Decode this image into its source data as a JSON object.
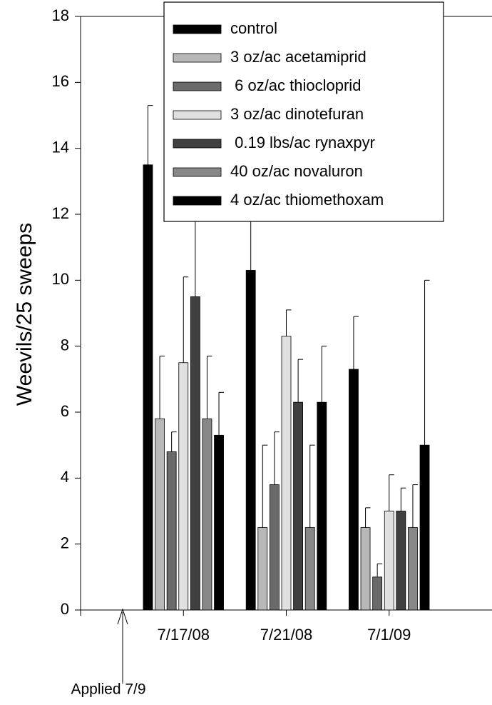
{
  "chart_data": {
    "type": "bar",
    "y_label": "Weevils/25 sweeps",
    "annotation": "Applied 7/9",
    "categories": [
      "7/17/08",
      "7/21/08",
      "7/1/09"
    ],
    "ylim": [
      0,
      18
    ],
    "yticks": [
      0,
      2,
      4,
      6,
      8,
      10,
      12,
      14,
      16,
      18
    ],
    "series": [
      {
        "name": "control",
        "color": "#000000",
        "values": [
          13.5,
          10.3,
          7.3
        ],
        "errors": [
          1.8,
          2.2,
          1.6
        ]
      },
      {
        "name": "3 oz/ac acetamiprid",
        "color": "#b8b8b8",
        "values": [
          5.8,
          2.5,
          2.5
        ],
        "errors": [
          1.9,
          2.5,
          0.6
        ]
      },
      {
        "name": " 6 oz/ac thiocloprid",
        "color": "#6a6a6a",
        "values": [
          4.8,
          3.8,
          1.0
        ],
        "errors": [
          0.6,
          1.6,
          0.4
        ]
      },
      {
        "name": "3 oz/ac dinotefuran",
        "color": "#e0e0e0",
        "values": [
          7.5,
          8.3,
          3.0
        ],
        "errors": [
          2.6,
          0.8,
          1.1
        ]
      },
      {
        "name": " 0.19 lbs/ac rynaxpyr",
        "color": "#404040",
        "values": [
          9.5,
          6.3,
          3.0
        ],
        "errors": [
          3.0,
          1.3,
          0.7
        ]
      },
      {
        "name": "40 oz/ac novaluron",
        "color": "#888888",
        "values": [
          5.8,
          2.5,
          2.5
        ],
        "errors": [
          1.9,
          2.5,
          1.3
        ]
      },
      {
        "name": "4 oz/ac thiomethoxam",
        "color": "#000000",
        "values": [
          5.3,
          6.3,
          5.0
        ],
        "errors": [
          1.3,
          1.7,
          5.0
        ]
      }
    ]
  }
}
